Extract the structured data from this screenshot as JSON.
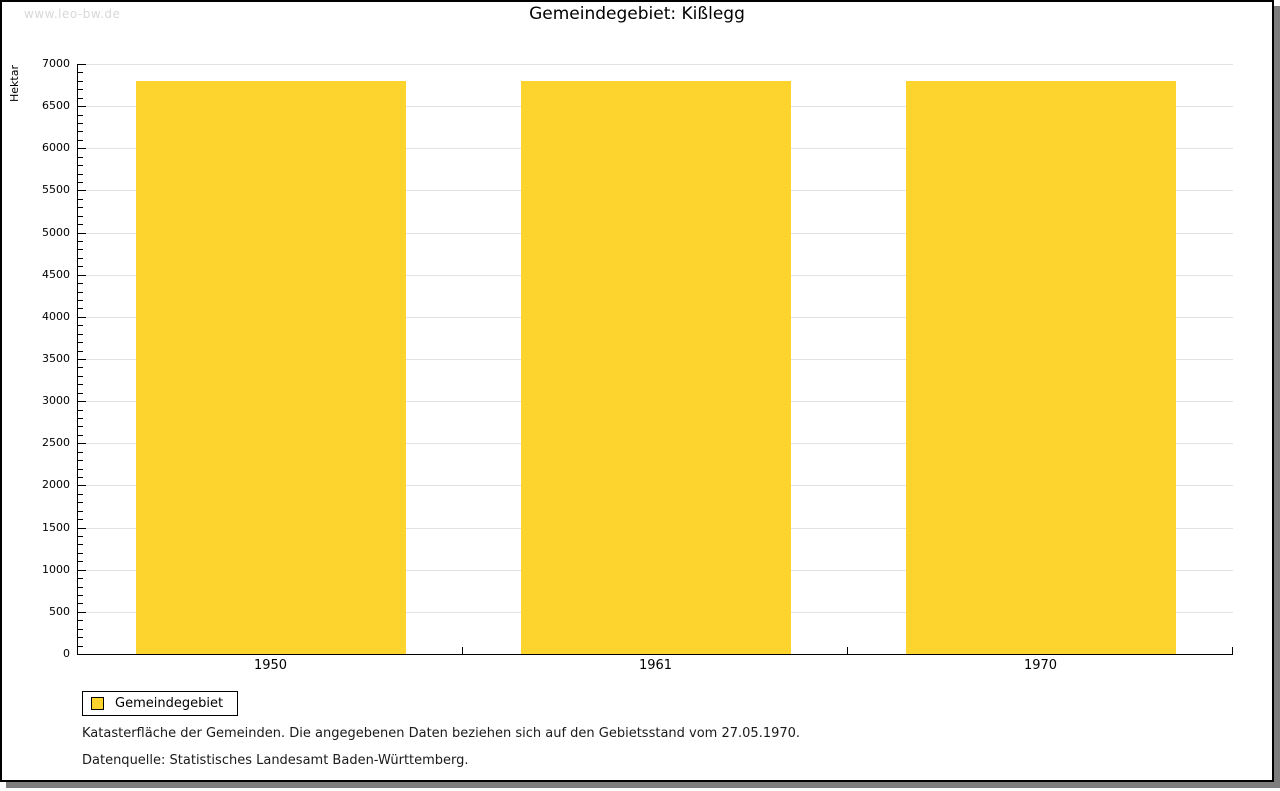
{
  "watermark": "www.leo-bw.de",
  "title": "Gemeindegebiet: Kißlegg",
  "chart_data": {
    "type": "bar",
    "categories": [
      "1950",
      "1961",
      "1970"
    ],
    "series": [
      {
        "name": "Gemeindegebiet",
        "values": [
          6800,
          6800,
          6800
        ]
      }
    ],
    "title": "Gemeindegebiet: Kißlegg",
    "xlabel": "",
    "ylabel": "Hektar",
    "ylim": [
      0,
      7000
    ],
    "y_major_step": 500,
    "y_minor_step": 100,
    "grid": true,
    "legend_position": "bottom-left",
    "bar_color": "#fcd42d",
    "gridline_color": "#e2e2e2"
  },
  "legend": {
    "items": [
      {
        "label": "Gemeindegebiet",
        "color": "#fcd42d"
      }
    ]
  },
  "footnotes": [
    "Katasterfläche der Gemeinden. Die angegebenen Daten beziehen sich auf den Gebietsstand vom 27.05.1970.",
    "Datenquelle: Statistisches Landesamt Baden-Württemberg."
  ]
}
